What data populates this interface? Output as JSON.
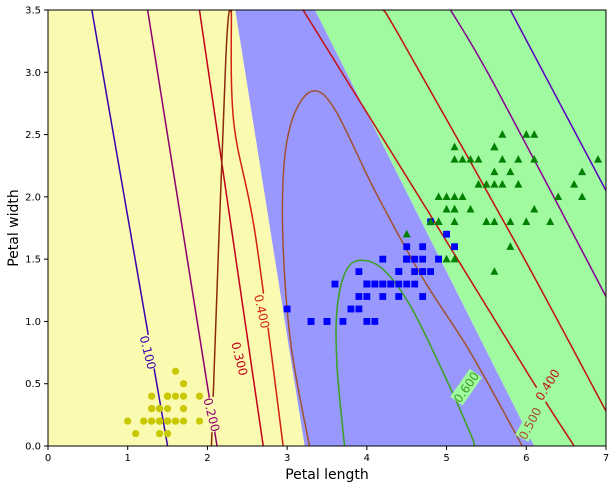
{
  "chart_data": {
    "type": "scatter",
    "xlabel": "Petal length",
    "ylabel": "Petal width",
    "xlim": [
      0,
      7
    ],
    "ylim": [
      0,
      3.5
    ],
    "x_ticks": [
      0,
      1,
      2,
      3,
      4,
      5,
      6,
      7
    ],
    "y_ticks": [
      0.0,
      0.5,
      1.0,
      1.5,
      2.0,
      2.5,
      3.0,
      3.5
    ],
    "x_tick_labels": [
      "0",
      "1",
      "2",
      "3",
      "4",
      "5",
      "6",
      "7"
    ],
    "y_tick_labels": [
      "0.0",
      "0.5",
      "1.0",
      "1.5",
      "2.0",
      "2.5",
      "3.0",
      "3.5"
    ],
    "grid": false,
    "regions": [
      {
        "class": 0,
        "color": "#fafab0",
        "polygon": [
          [
            0,
            0
          ],
          [
            3.22,
            0
          ],
          [
            2.35,
            3.5
          ],
          [
            0,
            3.5
          ]
        ]
      },
      {
        "class": 1,
        "color": "#9898ff",
        "polygon": [
          [
            3.22,
            0
          ],
          [
            6.1,
            0
          ],
          [
            3.35,
            3.5
          ],
          [
            2.35,
            3.5
          ]
        ]
      },
      {
        "class": 2,
        "color": "#a0faa0",
        "polygon": [
          [
            6.1,
            0
          ],
          [
            7,
            0
          ],
          [
            7,
            3.5
          ],
          [
            3.35,
            3.5
          ]
        ]
      }
    ],
    "series": [
      {
        "marker": "circle",
        "color": "#c8c800",
        "points": [
          [
            1.4,
            0.2
          ],
          [
            1.4,
            0.2
          ],
          [
            1.3,
            0.2
          ],
          [
            1.5,
            0.2
          ],
          [
            1.4,
            0.2
          ],
          [
            1.7,
            0.4
          ],
          [
            1.4,
            0.3
          ],
          [
            1.5,
            0.2
          ],
          [
            1.4,
            0.2
          ],
          [
            1.5,
            0.1
          ],
          [
            1.5,
            0.2
          ],
          [
            1.6,
            0.2
          ],
          [
            1.4,
            0.1
          ],
          [
            1.1,
            0.1
          ],
          [
            1.2,
            0.2
          ],
          [
            1.5,
            0.4
          ],
          [
            1.3,
            0.4
          ],
          [
            1.4,
            0.3
          ],
          [
            1.7,
            0.3
          ],
          [
            1.5,
            0.3
          ],
          [
            1.7,
            0.2
          ],
          [
            1.5,
            0.4
          ],
          [
            1.0,
            0.2
          ],
          [
            1.7,
            0.5
          ],
          [
            1.9,
            0.2
          ],
          [
            1.6,
            0.2
          ],
          [
            1.6,
            0.4
          ],
          [
            1.5,
            0.2
          ],
          [
            1.4,
            0.2
          ],
          [
            1.6,
            0.2
          ],
          [
            1.6,
            0.2
          ],
          [
            1.5,
            0.4
          ],
          [
            1.5,
            0.1
          ],
          [
            1.4,
            0.2
          ],
          [
            1.5,
            0.2
          ],
          [
            1.2,
            0.2
          ],
          [
            1.3,
            0.2
          ],
          [
            1.4,
            0.1
          ],
          [
            1.3,
            0.2
          ],
          [
            1.5,
            0.2
          ],
          [
            1.3,
            0.3
          ],
          [
            1.3,
            0.3
          ],
          [
            1.3,
            0.2
          ],
          [
            1.6,
            0.6
          ],
          [
            1.9,
            0.4
          ],
          [
            1.4,
            0.3
          ],
          [
            1.6,
            0.2
          ],
          [
            1.4,
            0.2
          ],
          [
            1.5,
            0.2
          ],
          [
            1.4,
            0.2
          ]
        ]
      },
      {
        "marker": "square",
        "color": "#0000ff",
        "points": [
          [
            4.7,
            1.4
          ],
          [
            4.5,
            1.5
          ],
          [
            4.9,
            1.5
          ],
          [
            4.0,
            1.3
          ],
          [
            4.6,
            1.5
          ],
          [
            4.5,
            1.3
          ],
          [
            4.7,
            1.6
          ],
          [
            3.3,
            1.0
          ],
          [
            4.6,
            1.3
          ],
          [
            3.9,
            1.4
          ],
          [
            3.5,
            1.0
          ],
          [
            4.2,
            1.5
          ],
          [
            4.0,
            1.0
          ],
          [
            4.7,
            1.4
          ],
          [
            3.6,
            1.3
          ],
          [
            4.4,
            1.4
          ],
          [
            4.5,
            1.5
          ],
          [
            4.1,
            1.0
          ],
          [
            4.5,
            1.5
          ],
          [
            3.9,
            1.1
          ],
          [
            4.8,
            1.8
          ],
          [
            4.0,
            1.3
          ],
          [
            4.9,
            1.5
          ],
          [
            4.7,
            1.2
          ],
          [
            4.3,
            1.3
          ],
          [
            4.4,
            1.4
          ],
          [
            4.8,
            1.4
          ],
          [
            5.0,
            1.7
          ],
          [
            4.5,
            1.5
          ],
          [
            3.5,
            1.0
          ],
          [
            3.8,
            1.1
          ],
          [
            3.7,
            1.0
          ],
          [
            3.9,
            1.2
          ],
          [
            5.1,
            1.6
          ],
          [
            4.5,
            1.5
          ],
          [
            4.5,
            1.6
          ],
          [
            4.7,
            1.5
          ],
          [
            4.4,
            1.3
          ],
          [
            4.1,
            1.3
          ],
          [
            4.0,
            1.3
          ],
          [
            4.4,
            1.2
          ],
          [
            4.6,
            1.4
          ],
          [
            4.0,
            1.2
          ],
          [
            3.3,
            1.0
          ],
          [
            4.2,
            1.3
          ],
          [
            4.2,
            1.2
          ],
          [
            4.2,
            1.3
          ],
          [
            4.3,
            1.3
          ],
          [
            3.0,
            1.1
          ],
          [
            4.1,
            1.3
          ]
        ]
      },
      {
        "marker": "triangle",
        "color": "#008000",
        "points": [
          [
            6.0,
            2.5
          ],
          [
            5.1,
            1.9
          ],
          [
            5.9,
            2.1
          ],
          [
            5.6,
            1.8
          ],
          [
            5.8,
            2.2
          ],
          [
            6.6,
            2.1
          ],
          [
            4.5,
            1.7
          ],
          [
            6.3,
            1.8
          ],
          [
            5.8,
            1.8
          ],
          [
            6.1,
            2.5
          ],
          [
            5.1,
            2.0
          ],
          [
            5.3,
            1.9
          ],
          [
            5.5,
            2.1
          ],
          [
            5.0,
            2.0
          ],
          [
            5.1,
            2.4
          ],
          [
            5.3,
            2.3
          ],
          [
            5.5,
            1.8
          ],
          [
            6.7,
            2.2
          ],
          [
            6.9,
            2.3
          ],
          [
            5.0,
            1.5
          ],
          [
            5.7,
            2.3
          ],
          [
            4.9,
            2.0
          ],
          [
            6.7,
            2.0
          ],
          [
            4.9,
            1.8
          ],
          [
            5.7,
            2.1
          ],
          [
            6.0,
            1.8
          ],
          [
            4.8,
            1.8
          ],
          [
            4.9,
            1.8
          ],
          [
            5.6,
            2.1
          ],
          [
            5.8,
            1.6
          ],
          [
            6.1,
            1.9
          ],
          [
            6.4,
            2.0
          ],
          [
            5.6,
            2.2
          ],
          [
            5.1,
            1.5
          ],
          [
            5.6,
            1.4
          ],
          [
            6.1,
            2.3
          ],
          [
            5.6,
            2.4
          ],
          [
            5.5,
            1.8
          ],
          [
            4.8,
            1.8
          ],
          [
            5.4,
            2.1
          ],
          [
            5.6,
            2.4
          ],
          [
            5.1,
            2.3
          ],
          [
            5.1,
            1.9
          ],
          [
            5.9,
            2.3
          ],
          [
            5.7,
            2.5
          ],
          [
            5.2,
            2.3
          ],
          [
            5.0,
            1.9
          ],
          [
            5.2,
            2.0
          ],
          [
            5.4,
            2.3
          ],
          [
            5.1,
            1.8
          ]
        ]
      }
    ],
    "contours": [
      {
        "label": "0.100",
        "color": "#3a00b0",
        "points": [
          [
            0.55,
            3.5
          ],
          [
            1.5,
            0
          ]
        ],
        "label_at": [
          1.25,
          0.75
        ],
        "label_angle": 76
      },
      {
        "label": "0.200",
        "color": "#8f0070",
        "points": [
          [
            1.25,
            3.5
          ],
          [
            2.12,
            0
          ]
        ],
        "label_at": [
          2.05,
          0.25
        ],
        "label_angle": 76
      },
      {
        "label": "0.300",
        "color": "#c0001a",
        "points": [
          [
            1.9,
            3.5
          ],
          [
            2.7,
            0
          ]
        ],
        "label_at": [
          2.4,
          0.7
        ],
        "label_angle": 76
      },
      {
        "label": "0.400",
        "color": "#d42010",
        "points": [
          [
            2.3,
            3.5
          ],
          [
            2.33,
            2.6
          ],
          [
            2.6,
            1.7
          ],
          [
            2.95,
            0
          ]
        ],
        "label_at": [
          2.68,
          1.08
        ],
        "label_angle": 78
      },
      {
        "label": "",
        "color": "#8b2a0a",
        "points": [
          [
            2.3,
            3.5
          ],
          [
            2.23,
            3.1
          ],
          [
            2.05,
            0
          ]
        ]
      },
      {
        "label": "0.400",
        "color": "#c41010",
        "points": [
          [
            6.6,
            0
          ],
          [
            6.05,
            0.55
          ],
          [
            4.8,
            1.85
          ],
          [
            3.2,
            3.5
          ]
        ],
        "label_at": [
          6.27,
          0.49
        ],
        "label_angle": -58
      },
      {
        "label": "",
        "color": "#c41010",
        "points": [
          [
            7,
            0.28
          ],
          [
            5.85,
            1.65
          ],
          [
            4.4,
            3.3
          ],
          [
            4.2,
            3.5
          ]
        ]
      },
      {
        "label": "",
        "color": "#8a0090",
        "points": [
          [
            7,
            1.2
          ],
          [
            5.6,
            2.9
          ],
          [
            5.05,
            3.5
          ]
        ]
      },
      {
        "label": "",
        "color": "#5a00c0",
        "points": [
          [
            7,
            2.05
          ],
          [
            5.8,
            3.5
          ]
        ]
      },
      {
        "label": "0.500",
        "color": "#a0522d",
        "points": [
          [
            3.28,
            0
          ],
          [
            3.05,
            0.8
          ],
          [
            2.95,
            1.6
          ],
          [
            2.96,
            2.25
          ],
          [
            3.08,
            2.65
          ],
          [
            3.32,
            2.85
          ],
          [
            3.6,
            2.7
          ],
          [
            4.1,
            2.05
          ],
          [
            4.7,
            1.35
          ],
          [
            5.3,
            0.75
          ],
          [
            5.95,
            0
          ]
        ],
        "label_at": [
          6.05,
          0.18
        ],
        "label_angle": -62
      },
      {
        "label": "0.600",
        "color": "#3aa020",
        "points": [
          [
            3.72,
            0
          ],
          [
            3.63,
            0.6
          ],
          [
            3.62,
            1.05
          ],
          [
            3.72,
            1.38
          ],
          [
            3.9,
            1.49
          ],
          [
            4.2,
            1.42
          ],
          [
            4.55,
            1.12
          ],
          [
            4.95,
            0.6
          ],
          [
            5.3,
            0.1
          ],
          [
            5.35,
            0
          ]
        ],
        "label_at": [
          5.25,
          0.47
        ],
        "label_angle": -55
      }
    ]
  }
}
